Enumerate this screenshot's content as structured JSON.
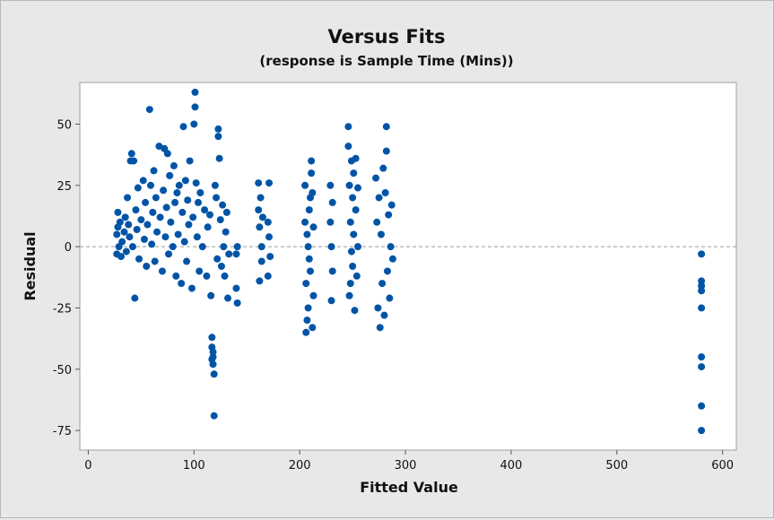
{
  "chart_data": {
    "type": "scatter",
    "title": "Versus Fits",
    "subtitle": "(response is Sample Time (Mins))",
    "xlabel": "Fitted Value",
    "ylabel": "Residual",
    "xlim": [
      -8,
      613
    ],
    "ylim": [
      -83,
      67
    ],
    "xticks": [
      0,
      100,
      200,
      300,
      400,
      500,
      600
    ],
    "xtick_labels": [
      "0",
      "100",
      "200",
      "300",
      "400",
      "500",
      "600"
    ],
    "yticks": [
      -75,
      -50,
      -25,
      0,
      25,
      50
    ],
    "ytick_labels": [
      "-75",
      "-50",
      "-25",
      "0",
      "25",
      "50"
    ],
    "reference_line_y": 0,
    "grid": false,
    "legend": "none",
    "point_color": "#0054a6",
    "reference_line_color": "#9a9a9a",
    "series": [
      {
        "points": [
          [
            27,
            5
          ],
          [
            27,
            -3
          ],
          [
            28,
            14
          ],
          [
            28,
            8
          ],
          [
            29,
            0
          ],
          [
            30,
            10
          ],
          [
            31,
            -4
          ],
          [
            32,
            2
          ],
          [
            34,
            6
          ],
          [
            35,
            12
          ],
          [
            36,
            -2
          ],
          [
            37,
            20
          ],
          [
            38,
            9
          ],
          [
            39,
            4
          ],
          [
            40,
            35
          ],
          [
            41,
            38
          ],
          [
            42,
            0
          ],
          [
            43,
            35
          ],
          [
            44,
            -21
          ],
          [
            45,
            15
          ],
          [
            46,
            7
          ],
          [
            47,
            24
          ],
          [
            48,
            -5
          ],
          [
            50,
            11
          ],
          [
            52,
            27
          ],
          [
            53,
            3
          ],
          [
            54,
            18
          ],
          [
            55,
            -8
          ],
          [
            56,
            9
          ],
          [
            58,
            56
          ],
          [
            59,
            25
          ],
          [
            60,
            1
          ],
          [
            61,
            14
          ],
          [
            62,
            31
          ],
          [
            63,
            -6
          ],
          [
            64,
            20
          ],
          [
            65,
            6
          ],
          [
            67,
            41
          ],
          [
            68,
            12
          ],
          [
            70,
            -10
          ],
          [
            71,
            23
          ],
          [
            72,
            40
          ],
          [
            73,
            4
          ],
          [
            74,
            16
          ],
          [
            75,
            38
          ],
          [
            76,
            -3
          ],
          [
            77,
            29
          ],
          [
            78,
            10
          ],
          [
            80,
            0
          ],
          [
            81,
            33
          ],
          [
            82,
            18
          ],
          [
            83,
            -12
          ],
          [
            84,
            22
          ],
          [
            85,
            5
          ],
          [
            86,
            25
          ],
          [
            88,
            -15
          ],
          [
            89,
            14
          ],
          [
            90,
            49
          ],
          [
            91,
            2
          ],
          [
            92,
            27
          ],
          [
            93,
            -6
          ],
          [
            94,
            19
          ],
          [
            95,
            9
          ],
          [
            96,
            35
          ],
          [
            98,
            -17
          ],
          [
            99,
            12
          ],
          [
            100,
            50
          ],
          [
            101,
            63
          ],
          [
            101,
            57
          ],
          [
            102,
            26
          ],
          [
            103,
            4
          ],
          [
            104,
            18
          ],
          [
            105,
            -10
          ],
          [
            106,
            22
          ],
          [
            108,
            0
          ],
          [
            110,
            15
          ],
          [
            112,
            -12
          ],
          [
            113,
            8
          ],
          [
            115,
            13
          ],
          [
            116,
            -20
          ],
          [
            117,
            -37
          ],
          [
            117,
            -41
          ],
          [
            118,
            -43
          ],
          [
            118,
            -45
          ],
          [
            118,
            -48
          ],
          [
            119,
            -52
          ],
          [
            119,
            -69
          ],
          [
            117,
            -46
          ],
          [
            120,
            25
          ],
          [
            121,
            20
          ],
          [
            122,
            -5
          ],
          [
            123,
            48
          ],
          [
            123,
            45
          ],
          [
            124,
            36
          ],
          [
            125,
            11
          ],
          [
            126,
            -8
          ],
          [
            127,
            17
          ],
          [
            128,
            0
          ],
          [
            129,
            -12
          ],
          [
            130,
            6
          ],
          [
            131,
            14
          ],
          [
            132,
            -21
          ],
          [
            133,
            -3
          ],
          [
            140,
            -3
          ],
          [
            140,
            -17
          ],
          [
            141,
            -23
          ],
          [
            141,
            0
          ],
          [
            161,
            26
          ],
          [
            161,
            15
          ],
          [
            162,
            8
          ],
          [
            162,
            -14
          ],
          [
            163,
            20
          ],
          [
            164,
            0
          ],
          [
            164,
            -6
          ],
          [
            165,
            12
          ],
          [
            170,
            10
          ],
          [
            170,
            -12
          ],
          [
            171,
            26
          ],
          [
            171,
            4
          ],
          [
            172,
            -4
          ],
          [
            205,
            25
          ],
          [
            205,
            10
          ],
          [
            206,
            -35
          ],
          [
            206,
            -15
          ],
          [
            207,
            -30
          ],
          [
            207,
            5
          ],
          [
            208,
            -25
          ],
          [
            208,
            0
          ],
          [
            209,
            15
          ],
          [
            209,
            -5
          ],
          [
            210,
            20
          ],
          [
            210,
            -10
          ],
          [
            211,
            35
          ],
          [
            211,
            30
          ],
          [
            212,
            -33
          ],
          [
            212,
            22
          ],
          [
            213,
            -20
          ],
          [
            213,
            8
          ],
          [
            229,
            25
          ],
          [
            229,
            10
          ],
          [
            230,
            -22
          ],
          [
            230,
            0
          ],
          [
            231,
            18
          ],
          [
            231,
            -10
          ],
          [
            246,
            49
          ],
          [
            246,
            41
          ],
          [
            247,
            25
          ],
          [
            247,
            -20
          ],
          [
            248,
            10
          ],
          [
            248,
            -15
          ],
          [
            249,
            35
          ],
          [
            249,
            -2
          ],
          [
            250,
            20
          ],
          [
            250,
            -8
          ],
          [
            251,
            30
          ],
          [
            251,
            5
          ],
          [
            252,
            -26
          ],
          [
            253,
            36
          ],
          [
            253,
            15
          ],
          [
            254,
            -12
          ],
          [
            255,
            24
          ],
          [
            255,
            0
          ],
          [
            272,
            28
          ],
          [
            273,
            10
          ],
          [
            274,
            -25
          ],
          [
            275,
            20
          ],
          [
            276,
            -33
          ],
          [
            277,
            5
          ],
          [
            278,
            -15
          ],
          [
            279,
            32
          ],
          [
            280,
            -28
          ],
          [
            281,
            22
          ],
          [
            282,
            49
          ],
          [
            282,
            39
          ],
          [
            283,
            -10
          ],
          [
            284,
            13
          ],
          [
            285,
            -21
          ],
          [
            286,
            0
          ],
          [
            287,
            17
          ],
          [
            288,
            -5
          ],
          [
            580,
            -3
          ],
          [
            580,
            -14
          ],
          [
            580,
            -16
          ],
          [
            580,
            -18
          ],
          [
            580,
            -25
          ],
          [
            580,
            -45
          ],
          [
            580,
            -49
          ],
          [
            580,
            -65
          ],
          [
            580,
            -75
          ]
        ]
      }
    ]
  }
}
